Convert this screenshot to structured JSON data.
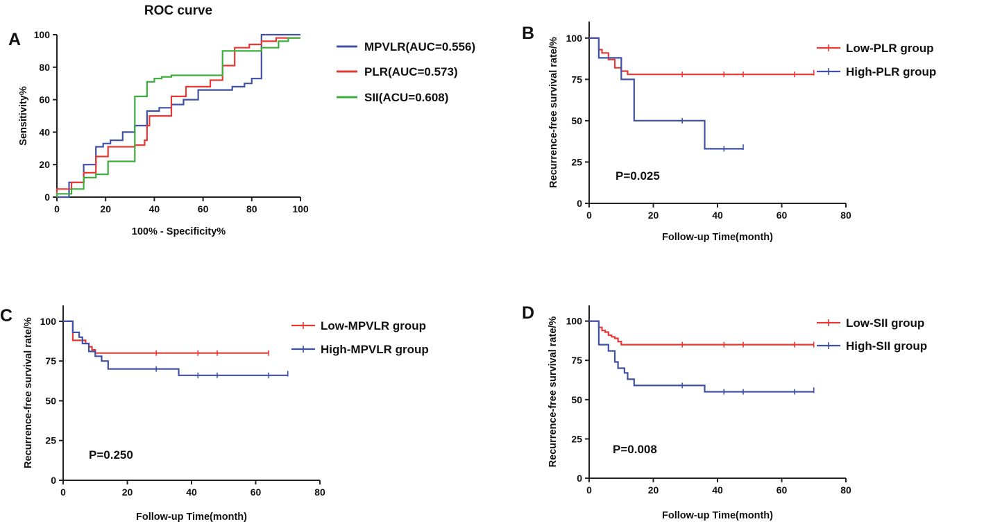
{
  "figure": {
    "panels": [
      {
        "label": "A",
        "title": "ROC curve"
      },
      {
        "label": "B",
        "title": ""
      },
      {
        "label": "C",
        "title": ""
      },
      {
        "label": "D",
        "title": ""
      }
    ]
  },
  "chart_data": [
    {
      "panel": "A",
      "type": "line",
      "title": "ROC curve",
      "xlabel": "100% - Specificity%",
      "ylabel": "Sensitivity%",
      "xlim": [
        0,
        100
      ],
      "ylim": [
        0,
        100
      ],
      "xticks": [
        0,
        20,
        40,
        60,
        80,
        100
      ],
      "yticks": [
        0,
        20,
        40,
        60,
        80,
        100
      ],
      "series": [
        {
          "name": "MPVLR(AUC=0.556)",
          "color": "#3f51a6",
          "points": [
            [
              0,
              0
            ],
            [
              5,
              0
            ],
            [
              5,
              9
            ],
            [
              11,
              9
            ],
            [
              11,
              20
            ],
            [
              16,
              20
            ],
            [
              16,
              31
            ],
            [
              19,
              31
            ],
            [
              19,
              33
            ],
            [
              22,
              33
            ],
            [
              22,
              35
            ],
            [
              27,
              35
            ],
            [
              27,
              40
            ],
            [
              32,
              40
            ],
            [
              32,
              44
            ],
            [
              37,
              44
            ],
            [
              37,
              53
            ],
            [
              42,
              53
            ],
            [
              42,
              55
            ],
            [
              47,
              55
            ],
            [
              47,
              57
            ],
            [
              52,
              57
            ],
            [
              52,
              60
            ],
            [
              58,
              60
            ],
            [
              58,
              66
            ],
            [
              72,
              66
            ],
            [
              72,
              68
            ],
            [
              77,
              68
            ],
            [
              77,
              70
            ],
            [
              80,
              70
            ],
            [
              80,
              73
            ],
            [
              84,
              73
            ],
            [
              84,
              100
            ],
            [
              100,
              100
            ]
          ]
        },
        {
          "name": "PLR(AUC=0.573)",
          "color": "#e53935",
          "points": [
            [
              0,
              0
            ],
            [
              0,
              5
            ],
            [
              6,
              5
            ],
            [
              6,
              9
            ],
            [
              11,
              9
            ],
            [
              11,
              15
            ],
            [
              16,
              15
            ],
            [
              16,
              25
            ],
            [
              21,
              25
            ],
            [
              21,
              31
            ],
            [
              32,
              31
            ],
            [
              32,
              32
            ],
            [
              36,
              32
            ],
            [
              36,
              35
            ],
            [
              37,
              35
            ],
            [
              37,
              44
            ],
            [
              38,
              44
            ],
            [
              38,
              50
            ],
            [
              47,
              50
            ],
            [
              47,
              62
            ],
            [
              53,
              62
            ],
            [
              53,
              68
            ],
            [
              63,
              68
            ],
            [
              63,
              72
            ],
            [
              68,
              72
            ],
            [
              68,
              81
            ],
            [
              73,
              81
            ],
            [
              73,
              92
            ],
            [
              79,
              92
            ],
            [
              79,
              94
            ],
            [
              84,
              94
            ],
            [
              84,
              96
            ],
            [
              90,
              96
            ],
            [
              90,
              98
            ],
            [
              100,
              98
            ]
          ]
        },
        {
          "name": "SII(ACU=0.608)",
          "color": "#3cae3c",
          "points": [
            [
              0,
              0
            ],
            [
              0,
              2
            ],
            [
              6,
              2
            ],
            [
              6,
              5
            ],
            [
              11,
              5
            ],
            [
              11,
              12
            ],
            [
              16,
              12
            ],
            [
              16,
              14
            ],
            [
              21,
              14
            ],
            [
              21,
              22
            ],
            [
              32,
              22
            ],
            [
              32,
              62
            ],
            [
              37,
              62
            ],
            [
              37,
              71
            ],
            [
              40,
              71
            ],
            [
              40,
              73
            ],
            [
              43,
              73
            ],
            [
              43,
              74
            ],
            [
              47,
              74
            ],
            [
              47,
              75
            ],
            [
              68,
              75
            ],
            [
              68,
              90
            ],
            [
              84,
              90
            ],
            [
              84,
              92
            ],
            [
              91,
              92
            ],
            [
              91,
              96
            ],
            [
              95,
              96
            ],
            [
              95,
              98
            ],
            [
              100,
              98
            ]
          ]
        }
      ]
    },
    {
      "panel": "B",
      "type": "line",
      "subtype": "kaplan-meier",
      "xlabel": "Follow-up Time(month)",
      "ylabel": "Recurrence-free survival rate/%",
      "xlim": [
        0,
        80
      ],
      "ylim": [
        0,
        110
      ],
      "xticks": [
        0,
        20,
        40,
        60,
        80
      ],
      "yticks": [
        0,
        25,
        50,
        75,
        100
      ],
      "annotation": "P=0.025",
      "series": [
        {
          "name": "Low-PLR group",
          "color": "#e53935",
          "points": [
            [
              0,
              100
            ],
            [
              3,
              100
            ],
            [
              3,
              93
            ],
            [
              4,
              93
            ],
            [
              4,
              91
            ],
            [
              6,
              91
            ],
            [
              6,
              87
            ],
            [
              8,
              87
            ],
            [
              8,
              82
            ],
            [
              10,
              82
            ],
            [
              10,
              80
            ],
            [
              12,
              80
            ],
            [
              12,
              78
            ],
            [
              70,
              78
            ]
          ],
          "censored": [
            [
              29,
              78
            ],
            [
              42,
              78
            ],
            [
              48,
              78
            ],
            [
              64,
              78
            ],
            [
              70,
              79
            ]
          ]
        },
        {
          "name": "High-PLR group",
          "color": "#3f51a6",
          "points": [
            [
              0,
              100
            ],
            [
              3,
              100
            ],
            [
              3,
              88
            ],
            [
              10,
              88
            ],
            [
              10,
              75
            ],
            [
              14,
              75
            ],
            [
              14,
              50
            ],
            [
              36,
              50
            ],
            [
              36,
              33
            ],
            [
              48,
              33
            ]
          ],
          "censored": [
            [
              29,
              50
            ],
            [
              42,
              33
            ],
            [
              48,
              34
            ]
          ]
        }
      ]
    },
    {
      "panel": "C",
      "type": "line",
      "subtype": "kaplan-meier",
      "xlabel": "Follow-up Time(month)",
      "ylabel": "Recurrence-free survival rate/%",
      "xlim": [
        0,
        80
      ],
      "ylim": [
        0,
        110
      ],
      "xticks": [
        0,
        20,
        40,
        60,
        80
      ],
      "yticks": [
        0,
        25,
        50,
        75,
        100
      ],
      "annotation": "P=0.250",
      "series": [
        {
          "name": "Low-MPVLR group",
          "color": "#e53935",
          "points": [
            [
              0,
              100
            ],
            [
              3,
              100
            ],
            [
              3,
              88
            ],
            [
              7,
              88
            ],
            [
              7,
              86
            ],
            [
              8,
              86
            ],
            [
              8,
              84
            ],
            [
              9,
              84
            ],
            [
              9,
              82
            ],
            [
              10,
              82
            ],
            [
              10,
              80
            ],
            [
              64,
              80
            ]
          ],
          "censored": [
            [
              29,
              80
            ],
            [
              42,
              80
            ],
            [
              48,
              80
            ],
            [
              64,
              80
            ]
          ]
        },
        {
          "name": "High-MPVLR group",
          "color": "#3f51a6",
          "points": [
            [
              0,
              100
            ],
            [
              3,
              100
            ],
            [
              3,
              93
            ],
            [
              5,
              93
            ],
            [
              5,
              90
            ],
            [
              6,
              90
            ],
            [
              6,
              86
            ],
            [
              8,
              86
            ],
            [
              8,
              81
            ],
            [
              10,
              81
            ],
            [
              10,
              78
            ],
            [
              12,
              78
            ],
            [
              12,
              75
            ],
            [
              14,
              75
            ],
            [
              14,
              70
            ],
            [
              36,
              70
            ],
            [
              36,
              66
            ],
            [
              70,
              66
            ]
          ],
          "censored": [
            [
              29,
              70
            ],
            [
              42,
              66
            ],
            [
              48,
              66
            ],
            [
              64,
              66
            ],
            [
              70,
              67
            ]
          ]
        }
      ]
    },
    {
      "panel": "D",
      "type": "line",
      "subtype": "kaplan-meier",
      "xlabel": "Follow-up Time(month)",
      "ylabel": "Recurrence-free survival rate/%",
      "xlim": [
        0,
        80
      ],
      "ylim": [
        0,
        110
      ],
      "xticks": [
        0,
        20,
        40,
        60,
        80
      ],
      "yticks": [
        0,
        25,
        50,
        75,
        100
      ],
      "annotation": "P=0.008",
      "series": [
        {
          "name": "Low-SII group",
          "color": "#e53935",
          "points": [
            [
              0,
              100
            ],
            [
              3,
              100
            ],
            [
              3,
              96
            ],
            [
              4,
              96
            ],
            [
              4,
              94
            ],
            [
              5,
              94
            ],
            [
              5,
              93
            ],
            [
              6,
              93
            ],
            [
              6,
              91
            ],
            [
              7,
              91
            ],
            [
              7,
              90
            ],
            [
              8,
              90
            ],
            [
              8,
              89
            ],
            [
              9,
              89
            ],
            [
              9,
              87
            ],
            [
              10,
              87
            ],
            [
              10,
              85
            ],
            [
              70,
              85
            ]
          ],
          "censored": [
            [
              29,
              85
            ],
            [
              42,
              85
            ],
            [
              48,
              85
            ],
            [
              64,
              85
            ],
            [
              70,
              85
            ]
          ]
        },
        {
          "name": "High-SII group",
          "color": "#3f51a6",
          "points": [
            [
              0,
              100
            ],
            [
              3,
              100
            ],
            [
              3,
              85
            ],
            [
              6,
              85
            ],
            [
              6,
              81
            ],
            [
              8,
              81
            ],
            [
              8,
              74
            ],
            [
              9,
              74
            ],
            [
              9,
              70
            ],
            [
              11,
              70
            ],
            [
              11,
              67
            ],
            [
              12,
              67
            ],
            [
              12,
              63
            ],
            [
              14,
              63
            ],
            [
              14,
              59
            ],
            [
              36,
              59
            ],
            [
              36,
              55
            ],
            [
              70,
              55
            ]
          ],
          "censored": [
            [
              29,
              59
            ],
            [
              42,
              55
            ],
            [
              48,
              55
            ],
            [
              64,
              55
            ],
            [
              70,
              56
            ]
          ]
        }
      ]
    }
  ]
}
